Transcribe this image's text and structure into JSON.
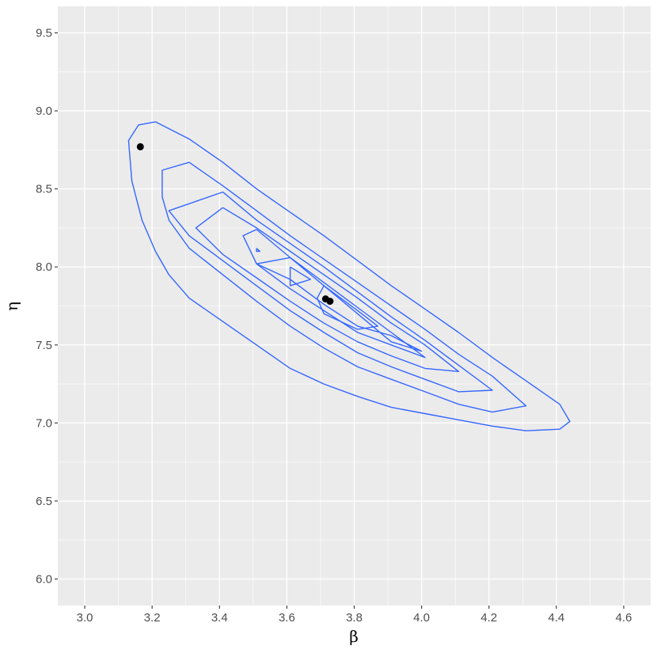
{
  "chart_data": {
    "type": "contour",
    "xlabel": "β",
    "ylabel": "η",
    "xlim": [
      2.92,
      4.68
    ],
    "ylim": [
      5.83,
      9.67
    ],
    "x_ticks": [
      3.0,
      3.2,
      3.4,
      3.6,
      3.8,
      4.0,
      4.2,
      4.4,
      4.6
    ],
    "x_tick_labels": [
      "3.0",
      "3.2",
      "3.4",
      "3.6",
      "3.8",
      "4.0",
      "4.2",
      "4.4",
      "4.6"
    ],
    "y_ticks": [
      6.0,
      6.5,
      7.0,
      7.5,
      8.0,
      8.5,
      9.0,
      9.5
    ],
    "y_tick_labels": [
      "6.0",
      "6.5",
      "7.0",
      "7.5",
      "8.0",
      "8.5",
      "9.0",
      "9.5"
    ],
    "grid": true,
    "background_color": "#EBEBEB",
    "grid_color": "#FFFFFF",
    "contour_color": "#3366FF",
    "point_color": "#000000",
    "contours": [
      [
        [
          3.21,
          8.93
        ],
        [
          3.31,
          8.82
        ],
        [
          3.41,
          8.67
        ],
        [
          3.51,
          8.5
        ],
        [
          3.61,
          8.35
        ],
        [
          3.71,
          8.2
        ],
        [
          3.81,
          8.04
        ],
        [
          3.91,
          7.88
        ],
        [
          4.01,
          7.73
        ],
        [
          4.11,
          7.58
        ],
        [
          4.21,
          7.42
        ],
        [
          4.31,
          7.27
        ],
        [
          4.41,
          7.12
        ],
        [
          4.44,
          7.01
        ],
        [
          4.41,
          6.96
        ],
        [
          4.31,
          6.95
        ],
        [
          4.21,
          6.98
        ],
        [
          4.11,
          7.02
        ],
        [
          4.01,
          7.06
        ],
        [
          3.91,
          7.1
        ],
        [
          3.81,
          7.17
        ],
        [
          3.71,
          7.25
        ],
        [
          3.61,
          7.35
        ],
        [
          3.51,
          7.5
        ],
        [
          3.41,
          7.65
        ],
        [
          3.31,
          7.8
        ],
        [
          3.25,
          7.95
        ],
        [
          3.21,
          8.1
        ],
        [
          3.17,
          8.3
        ],
        [
          3.14,
          8.55
        ],
        [
          3.13,
          8.81
        ],
        [
          3.16,
          8.91
        ],
        [
          3.21,
          8.93
        ]
      ],
      [
        [
          3.31,
          8.67
        ],
        [
          3.41,
          8.52
        ],
        [
          3.51,
          8.36
        ],
        [
          3.61,
          8.2
        ],
        [
          3.71,
          8.05
        ],
        [
          3.81,
          7.9
        ],
        [
          3.91,
          7.75
        ],
        [
          4.01,
          7.6
        ],
        [
          4.11,
          7.44
        ],
        [
          4.21,
          7.3
        ],
        [
          4.31,
          7.11
        ],
        [
          4.21,
          7.07
        ],
        [
          4.11,
          7.12
        ],
        [
          4.01,
          7.2
        ],
        [
          3.91,
          7.28
        ],
        [
          3.81,
          7.36
        ],
        [
          3.71,
          7.48
        ],
        [
          3.61,
          7.62
        ],
        [
          3.51,
          7.78
        ],
        [
          3.41,
          7.95
        ],
        [
          3.31,
          8.12
        ],
        [
          3.25,
          8.3
        ],
        [
          3.23,
          8.45
        ],
        [
          3.23,
          8.62
        ],
        [
          3.31,
          8.67
        ]
      ],
      [
        [
          3.41,
          8.48
        ],
        [
          3.51,
          8.3
        ],
        [
          3.61,
          8.15
        ],
        [
          3.71,
          8.0
        ],
        [
          3.81,
          7.84
        ],
        [
          3.91,
          7.68
        ],
        [
          4.01,
          7.53
        ],
        [
          4.11,
          7.37
        ],
        [
          4.21,
          7.21
        ],
        [
          4.11,
          7.2
        ],
        [
          4.01,
          7.28
        ],
        [
          3.91,
          7.36
        ],
        [
          3.81,
          7.45
        ],
        [
          3.71,
          7.58
        ],
        [
          3.61,
          7.72
        ],
        [
          3.51,
          7.88
        ],
        [
          3.41,
          8.04
        ],
        [
          3.31,
          8.2
        ],
        [
          3.25,
          8.36
        ],
        [
          3.41,
          8.48
        ]
      ],
      [
        [
          3.41,
          8.38
        ],
        [
          3.51,
          8.25
        ],
        [
          3.61,
          8.1
        ],
        [
          3.71,
          7.95
        ],
        [
          3.81,
          7.8
        ],
        [
          3.91,
          7.64
        ],
        [
          4.01,
          7.5
        ],
        [
          4.11,
          7.33
        ],
        [
          4.01,
          7.35
        ],
        [
          3.91,
          7.43
        ],
        [
          3.81,
          7.52
        ],
        [
          3.71,
          7.64
        ],
        [
          3.61,
          7.78
        ],
        [
          3.51,
          7.93
        ],
        [
          3.41,
          8.08
        ],
        [
          3.33,
          8.25
        ],
        [
          3.41,
          8.38
        ]
      ],
      [
        [
          3.51,
          8.24
        ],
        [
          3.61,
          8.06
        ],
        [
          3.71,
          7.9
        ],
        [
          3.81,
          7.74
        ],
        [
          3.91,
          7.58
        ],
        [
          4.01,
          7.42
        ],
        [
          3.91,
          7.5
        ],
        [
          3.81,
          7.58
        ],
        [
          3.71,
          7.72
        ],
        [
          3.61,
          7.86
        ],
        [
          3.51,
          8.02
        ],
        [
          3.47,
          8.2
        ],
        [
          3.51,
          8.24
        ]
      ],
      [
        [
          3.61,
          8.06
        ],
        [
          3.71,
          7.88
        ],
        [
          3.81,
          7.7
        ],
        [
          3.91,
          7.52
        ],
        [
          4.0,
          7.46
        ],
        [
          3.91,
          7.56
        ],
        [
          3.81,
          7.62
        ],
        [
          3.71,
          7.76
        ],
        [
          3.61,
          7.92
        ],
        [
          3.51,
          8.02
        ],
        [
          3.61,
          8.06
        ]
      ],
      [
        [
          3.61,
          8.0
        ],
        [
          3.67,
          7.92
        ],
        [
          3.61,
          7.88
        ],
        [
          3.61,
          8.0
        ]
      ],
      [
        [
          3.71,
          7.88
        ],
        [
          3.81,
          7.72
        ],
        [
          3.87,
          7.62
        ],
        [
          3.81,
          7.6
        ],
        [
          3.71,
          7.7
        ],
        [
          3.69,
          7.8
        ],
        [
          3.71,
          7.88
        ]
      ],
      [
        [
          3.51,
          8.12
        ],
        [
          3.52,
          8.1
        ],
        [
          3.51,
          8.1
        ],
        [
          3.51,
          8.12
        ]
      ]
    ],
    "points": [
      [
        3.165,
        8.77
      ],
      [
        3.715,
        7.795
      ],
      [
        3.728,
        7.78
      ]
    ]
  }
}
